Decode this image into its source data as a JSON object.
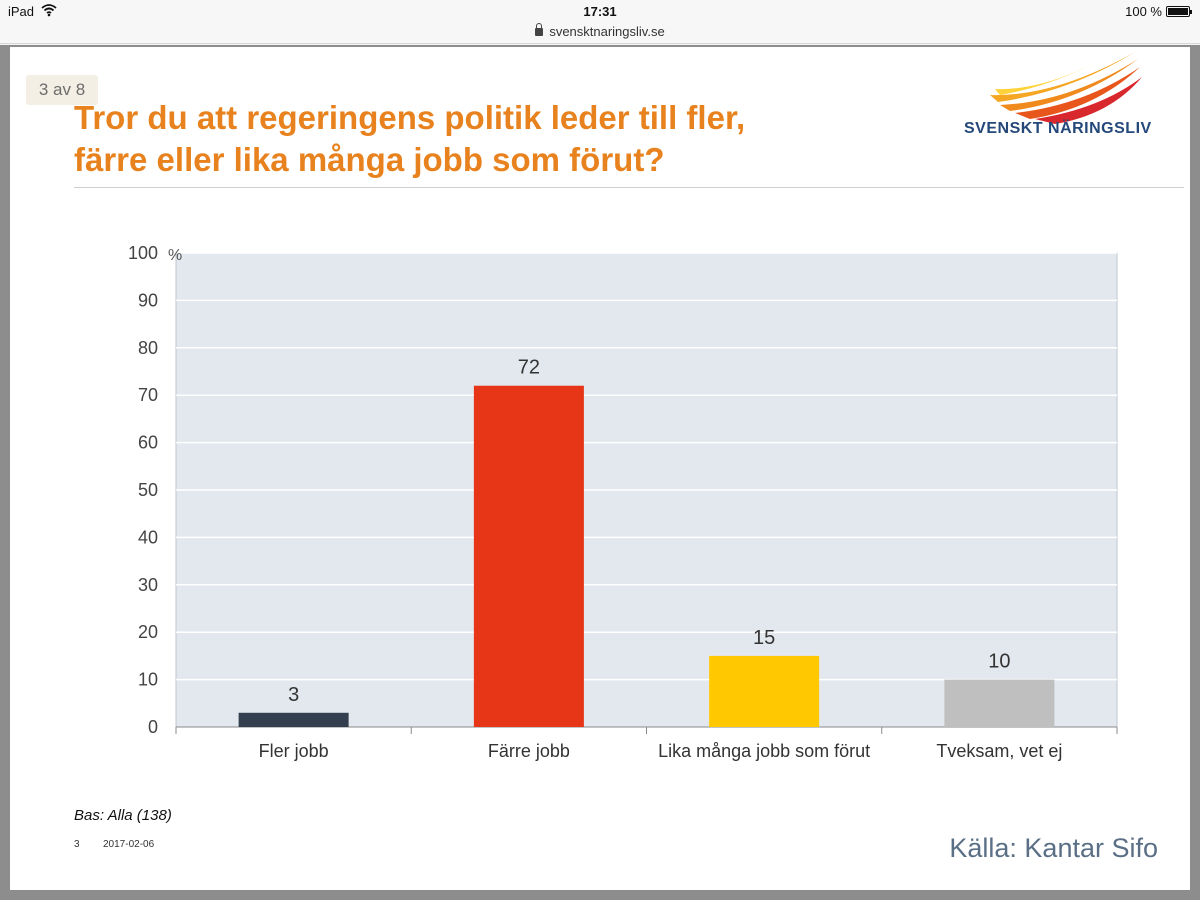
{
  "status_bar": {
    "device": "iPad",
    "time": "17:31",
    "battery": "100 %"
  },
  "browser": {
    "url": "svensktnaringsliv.se"
  },
  "slide": {
    "page_badge": "3 av 8",
    "title_line1": "Tror du att regeringens politik leder till fler,",
    "title_line2": "färre eller lika många jobb som förut?",
    "logo_text": "SVENSKT NÄRINGSLIV",
    "base_note": "Bas: Alla (138)",
    "footer_page": "3",
    "footer_date": "2017-02-06",
    "source": "Källa: Kantar Sifo"
  },
  "colors": {
    "title": "#e8821e",
    "plot_bg": "#e3e8ee",
    "fler": "#333f4f",
    "farre": "#e63517",
    "lika": "#ffc800",
    "tveksam": "#bfbfbf"
  },
  "chart_data": {
    "type": "bar",
    "title": "Tror du att regeringens politik leder till fler, färre eller lika många jobb som förut?",
    "ylabel": "%",
    "ylim": [
      0,
      100
    ],
    "yticks": [
      "0",
      "10",
      "20",
      "30",
      "40",
      "50",
      "60",
      "70",
      "80",
      "90",
      "100"
    ],
    "categories": [
      "Fler jobb",
      "Färre jobb",
      "Lika många jobb som förut",
      "Tveksam, vet ej"
    ],
    "values": [
      3,
      72,
      15,
      10
    ],
    "value_labels": [
      "3",
      "72",
      "15",
      "10"
    ],
    "bar_colors": [
      "#333f4f",
      "#e63517",
      "#ffc800",
      "#bfbfbf"
    ],
    "grid": true
  }
}
